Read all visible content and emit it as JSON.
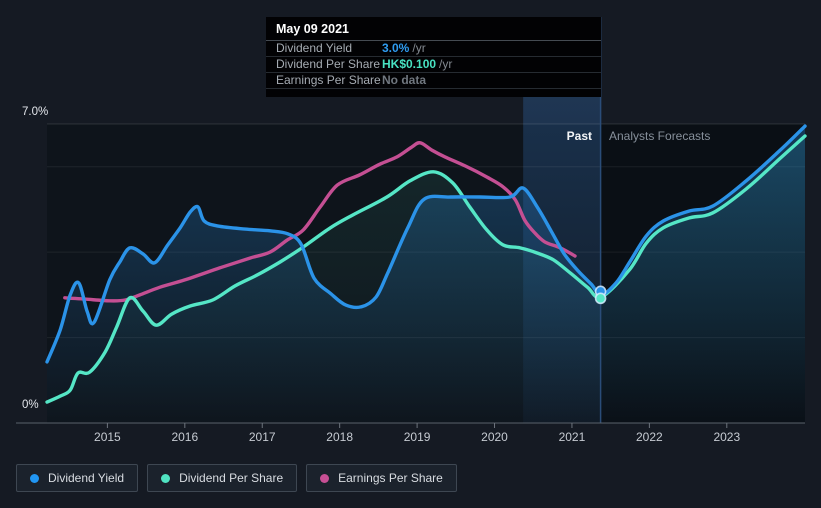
{
  "tooltip": {
    "date": "May 09 2021",
    "rows": [
      {
        "label": "Dividend Yield",
        "value": "3.0%",
        "suffix": "/yr",
        "value_color": "#2f9cf0"
      },
      {
        "label": "Dividend Per Share",
        "value": "HK$0.100",
        "suffix": "/yr",
        "value_color": "#48e2c2"
      },
      {
        "label": "Earnings Per Share",
        "value": "No data",
        "suffix": "",
        "value_color": "#70777f"
      }
    ]
  },
  "labels": {
    "past": "Past",
    "forecast": "Analysts Forecasts"
  },
  "axis": {
    "y_top": "7.0%",
    "y_bottom": "0%",
    "years": [
      "2015",
      "2016",
      "2017",
      "2018",
      "2019",
      "2020",
      "2021",
      "2022",
      "2023"
    ]
  },
  "legend": [
    {
      "label": "Dividend Yield",
      "color": "#2196f3"
    },
    {
      "label": "Dividend Per Share",
      "color": "#50e3c2"
    },
    {
      "label": "Earnings Per Share",
      "color": "#c74f94"
    }
  ],
  "chart_data": {
    "type": "line",
    "title": "Dividend yield history and forecast",
    "xlim": [
      2014.22,
      2024.01
    ],
    "ylim": [
      0,
      7
    ],
    "y_gridlines_pct": [
      2,
      4,
      6
    ],
    "y_top_border_pct": 7,
    "grid": true,
    "legend_position": "bottom-left",
    "past_until": 2021.37,
    "hover_band": {
      "from": 2020.37,
      "to": 2021.37
    },
    "marker": {
      "year": 2021.37,
      "value_pct": 3.0,
      "dividend_per_share": "HK$0.100"
    },
    "series": [
      {
        "name": "Earnings Per Share",
        "color": "#c44f93",
        "area_opacity": 0,
        "points": [
          [
            2014.45,
            2.93
          ],
          [
            2014.71,
            2.9
          ],
          [
            2015.03,
            2.86
          ],
          [
            2015.23,
            2.88
          ],
          [
            2015.42,
            3.0
          ],
          [
            2015.68,
            3.18
          ],
          [
            2016.0,
            3.35
          ],
          [
            2016.45,
            3.63
          ],
          [
            2016.84,
            3.86
          ],
          [
            2017.1,
            4.0
          ],
          [
            2017.32,
            4.28
          ],
          [
            2017.53,
            4.52
          ],
          [
            2017.75,
            5.06
          ],
          [
            2017.97,
            5.57
          ],
          [
            2018.26,
            5.81
          ],
          [
            2018.52,
            6.06
          ],
          [
            2018.74,
            6.23
          ],
          [
            2018.93,
            6.46
          ],
          [
            2019.04,
            6.56
          ],
          [
            2019.19,
            6.39
          ],
          [
            2019.36,
            6.23
          ],
          [
            2019.62,
            6.02
          ],
          [
            2019.9,
            5.76
          ],
          [
            2020.11,
            5.53
          ],
          [
            2020.27,
            5.22
          ],
          [
            2020.39,
            4.75
          ],
          [
            2020.52,
            4.45
          ],
          [
            2020.65,
            4.24
          ],
          [
            2020.85,
            4.1
          ],
          [
            2021.04,
            3.91
          ]
        ]
      },
      {
        "name": "Dividend Per Share",
        "color": "#55e6c6",
        "area_opacity": 0.1,
        "points": [
          [
            2014.22,
            0.49
          ],
          [
            2014.39,
            0.63
          ],
          [
            2014.52,
            0.77
          ],
          [
            2014.62,
            1.17
          ],
          [
            2014.77,
            1.19
          ],
          [
            2014.97,
            1.66
          ],
          [
            2015.12,
            2.25
          ],
          [
            2015.29,
            2.93
          ],
          [
            2015.46,
            2.62
          ],
          [
            2015.63,
            2.29
          ],
          [
            2015.83,
            2.55
          ],
          [
            2016.07,
            2.74
          ],
          [
            2016.36,
            2.88
          ],
          [
            2016.65,
            3.21
          ],
          [
            2016.94,
            3.47
          ],
          [
            2017.23,
            3.77
          ],
          [
            2017.53,
            4.12
          ],
          [
            2017.88,
            4.57
          ],
          [
            2018.17,
            4.87
          ],
          [
            2018.61,
            5.29
          ],
          [
            2018.91,
            5.67
          ],
          [
            2019.21,
            5.88
          ],
          [
            2019.46,
            5.62
          ],
          [
            2019.68,
            5.06
          ],
          [
            2019.9,
            4.52
          ],
          [
            2020.11,
            4.17
          ],
          [
            2020.33,
            4.1
          ],
          [
            2020.55,
            3.98
          ],
          [
            2020.76,
            3.82
          ],
          [
            2020.98,
            3.51
          ],
          [
            2021.2,
            3.18
          ],
          [
            2021.38,
            2.95
          ],
          [
            2021.74,
            3.58
          ],
          [
            2021.96,
            4.21
          ],
          [
            2022.18,
            4.57
          ],
          [
            2022.51,
            4.8
          ],
          [
            2022.82,
            4.92
          ],
          [
            2023.25,
            5.48
          ],
          [
            2023.68,
            6.18
          ],
          [
            2024.01,
            6.72
          ]
        ]
      },
      {
        "name": "Dividend Yield",
        "color": "#2b93e8",
        "area_opacity": 0.32,
        "points": [
          [
            2014.22,
            1.43
          ],
          [
            2014.39,
            2.18
          ],
          [
            2014.52,
            3.0
          ],
          [
            2014.63,
            3.28
          ],
          [
            2014.74,
            2.6
          ],
          [
            2014.83,
            2.36
          ],
          [
            2015.03,
            3.35
          ],
          [
            2015.16,
            3.77
          ],
          [
            2015.29,
            4.1
          ],
          [
            2015.46,
            3.96
          ],
          [
            2015.61,
            3.75
          ],
          [
            2015.78,
            4.17
          ],
          [
            2015.94,
            4.57
          ],
          [
            2016.07,
            4.94
          ],
          [
            2016.17,
            5.06
          ],
          [
            2016.25,
            4.73
          ],
          [
            2016.43,
            4.61
          ],
          [
            2016.78,
            4.54
          ],
          [
            2017.1,
            4.5
          ],
          [
            2017.33,
            4.43
          ],
          [
            2017.5,
            4.19
          ],
          [
            2017.67,
            3.39
          ],
          [
            2017.89,
            3.02
          ],
          [
            2018.08,
            2.76
          ],
          [
            2018.28,
            2.72
          ],
          [
            2018.47,
            2.95
          ],
          [
            2018.62,
            3.51
          ],
          [
            2018.88,
            4.57
          ],
          [
            2019.09,
            5.24
          ],
          [
            2019.43,
            5.29
          ],
          [
            2019.81,
            5.29
          ],
          [
            2020.2,
            5.29
          ],
          [
            2020.37,
            5.5
          ],
          [
            2020.56,
            5.03
          ],
          [
            2020.73,
            4.5
          ],
          [
            2020.9,
            3.96
          ],
          [
            2021.08,
            3.56
          ],
          [
            2021.25,
            3.25
          ],
          [
            2021.38,
            3.0
          ],
          [
            2021.57,
            3.28
          ],
          [
            2021.74,
            3.75
          ],
          [
            2021.96,
            4.38
          ],
          [
            2022.18,
            4.73
          ],
          [
            2022.51,
            4.96
          ],
          [
            2022.82,
            5.08
          ],
          [
            2023.25,
            5.67
          ],
          [
            2023.68,
            6.37
          ],
          [
            2024.01,
            6.95
          ]
        ]
      }
    ]
  }
}
